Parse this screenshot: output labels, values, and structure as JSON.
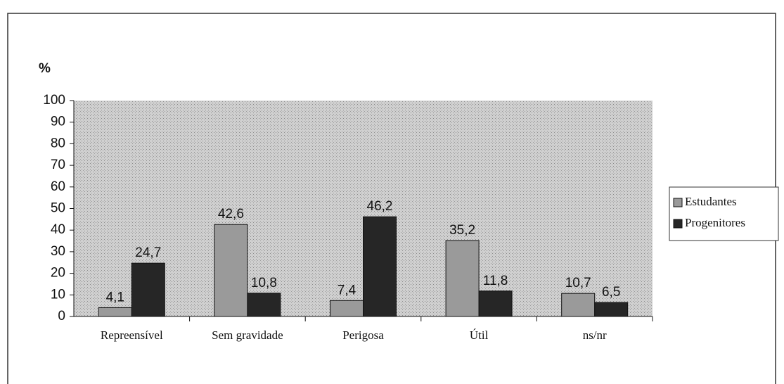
{
  "chart_data": {
    "type": "bar",
    "ylabel": "%",
    "categories": [
      "Repreensível",
      "Sem gravidade",
      "Perigosa",
      "Útil",
      "ns/nr"
    ],
    "series": [
      {
        "name": "Estudantes",
        "color": "#9a9a9a",
        "values": [
          4.1,
          42.6,
          7.4,
          35.2,
          10.7
        ],
        "value_labels": [
          "4,1",
          "42,6",
          "7,4",
          "35,2",
          "10,7"
        ]
      },
      {
        "name": "Progenitores",
        "color": "#262626",
        "values": [
          24.7,
          10.8,
          46.2,
          11.8,
          6.5
        ],
        "value_labels": [
          "24,7",
          "10,8",
          "46,2",
          "11,8",
          "6,5"
        ]
      }
    ],
    "ylim": [
      0,
      100
    ],
    "yticks": [
      0,
      10,
      20,
      30,
      40,
      50,
      60,
      70,
      80,
      90,
      100
    ],
    "legend": "right"
  }
}
